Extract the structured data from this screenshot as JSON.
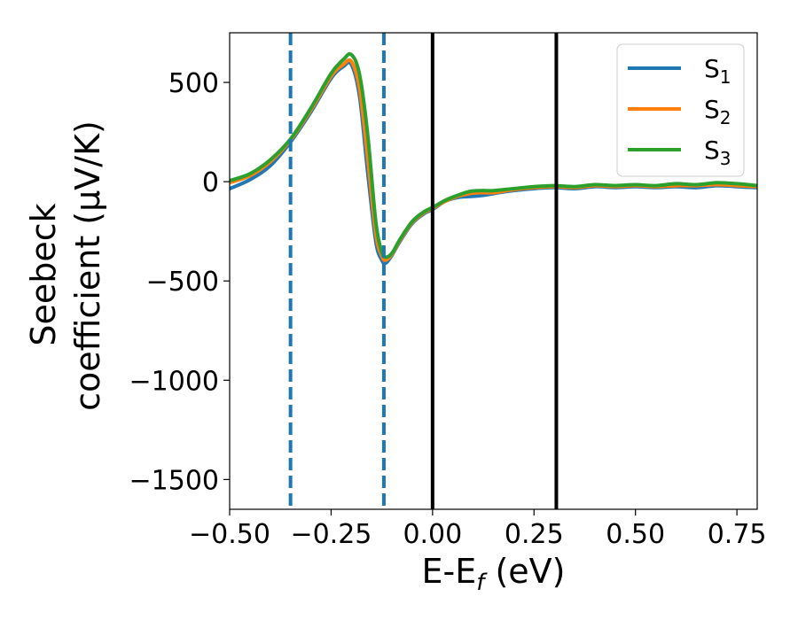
{
  "chart_data": {
    "type": "line",
    "xlabel": {
      "main": "E-E",
      "sub": "f",
      "unit": " (eV)"
    },
    "ylabel": {
      "line1": "Seebeck",
      "line2": "coefficient  (μV/K)"
    },
    "xlim": [
      -0.5,
      0.8
    ],
    "ylim": [
      -1650,
      750
    ],
    "xticks": [
      -0.5,
      -0.25,
      0.0,
      0.25,
      0.5,
      0.75
    ],
    "xtick_labels": [
      "−0.50",
      "−0.25",
      "0.00",
      "0.25",
      "0.50",
      "0.75"
    ],
    "yticks": [
      500,
      0,
      -500,
      -1000,
      -1500
    ],
    "ytick_labels": [
      "500",
      "0",
      "−500",
      "−1000",
      "−1500"
    ],
    "grid": false,
    "legend_position": "upper-right",
    "vlines": [
      {
        "x": -0.35,
        "style": "dashed",
        "color": "#1f77b4"
      },
      {
        "x": -0.12,
        "style": "dashed",
        "color": "#1f77b4"
      },
      {
        "x": 0.0,
        "style": "solid",
        "color": "#000000"
      },
      {
        "x": 0.305,
        "style": "solid",
        "color": "#000000"
      }
    ],
    "series": [
      {
        "name": "S",
        "sub": "1",
        "color": "#1f77b4",
        "x": [
          -0.5,
          -0.45,
          -0.4,
          -0.35,
          -0.3,
          -0.25,
          -0.22,
          -0.2,
          -0.18,
          -0.16,
          -0.14,
          -0.125,
          -0.115,
          -0.1,
          -0.08,
          -0.05,
          -0.02,
          0.0,
          0.03,
          0.06,
          0.09,
          0.12,
          0.15,
          0.2,
          0.25,
          0.3,
          0.35,
          0.4,
          0.45,
          0.5,
          0.55,
          0.6,
          0.65,
          0.7,
          0.75,
          0.8
        ],
        "y": [
          -35,
          10,
          80,
          200,
          350,
          520,
          580,
          590,
          430,
          50,
          -300,
          -395,
          -410,
          -370,
          -300,
          -210,
          -160,
          -140,
          -100,
          -80,
          -75,
          -70,
          -60,
          -45,
          -35,
          -30,
          -35,
          -25,
          -30,
          -25,
          -30,
          -25,
          -30,
          -20,
          -25,
          -30
        ]
      },
      {
        "name": "S",
        "sub": "2",
        "color": "#ff7f0e",
        "x": [
          -0.5,
          -0.45,
          -0.4,
          -0.35,
          -0.3,
          -0.25,
          -0.22,
          -0.2,
          -0.18,
          -0.16,
          -0.14,
          -0.125,
          -0.115,
          -0.1,
          -0.08,
          -0.05,
          -0.02,
          0.0,
          0.03,
          0.06,
          0.09,
          0.12,
          0.15,
          0.2,
          0.25,
          0.3,
          0.35,
          0.4,
          0.45,
          0.5,
          0.55,
          0.6,
          0.65,
          0.7,
          0.75,
          0.8
        ],
        "y": [
          -5,
          30,
          100,
          210,
          360,
          530,
          590,
          605,
          470,
          120,
          -260,
          -375,
          -395,
          -365,
          -295,
          -205,
          -155,
          -135,
          -100,
          -75,
          -60,
          -55,
          -55,
          -40,
          -30,
          -25,
          -30,
          -20,
          -25,
          -20,
          -25,
          -20,
          -20,
          -15,
          -20,
          -25
        ]
      },
      {
        "name": "S",
        "sub": "3",
        "color": "#2ca02c",
        "x": [
          -0.5,
          -0.45,
          -0.4,
          -0.35,
          -0.3,
          -0.25,
          -0.22,
          -0.2,
          -0.18,
          -0.16,
          -0.14,
          -0.125,
          -0.115,
          -0.1,
          -0.08,
          -0.05,
          -0.02,
          0.0,
          0.03,
          0.06,
          0.09,
          0.12,
          0.15,
          0.2,
          0.25,
          0.3,
          0.35,
          0.4,
          0.45,
          0.5,
          0.55,
          0.6,
          0.65,
          0.7,
          0.75,
          0.8
        ],
        "y": [
          5,
          40,
          110,
          215,
          370,
          545,
          615,
          640,
          540,
          240,
          -200,
          -355,
          -380,
          -360,
          -290,
          -200,
          -150,
          -130,
          -95,
          -70,
          -50,
          -45,
          -45,
          -35,
          -25,
          -20,
          -25,
          -15,
          -20,
          -15,
          -20,
          -10,
          -15,
          -5,
          -10,
          -20
        ]
      }
    ]
  }
}
